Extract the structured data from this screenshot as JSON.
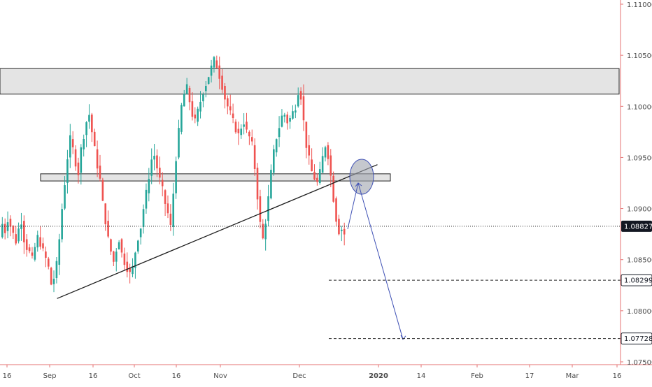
{
  "colors": {
    "up": "#26a69a",
    "down": "#ef5350",
    "axis_line": "#e57373",
    "zone_fill": "#e4e4e4",
    "zone_stroke": "#222222",
    "trendline": "#1e1e1e",
    "projection": "#3f51b5",
    "circle_fill": "#9fa3ad",
    "level_line": "#222222"
  },
  "chart_data": {
    "type": "candlestick",
    "instrument": "",
    "title": "",
    "ylim": [
      1.075,
      1.11
    ],
    "y_ticks": [
      "1.11000",
      "1.10500",
      "1.10000",
      "1.09500",
      "1.09000",
      "1.08500",
      "1.08000",
      "1.07500"
    ],
    "x_ticks": [
      "16",
      "Sep",
      "16",
      "Oct",
      "16",
      "Nov",
      "Dec",
      "2020",
      "14",
      "Feb",
      "17",
      "Mar",
      "16"
    ],
    "x_ticks_bold": [
      "2020"
    ],
    "price_levels": [
      {
        "label": "1.08827",
        "value": 1.08827,
        "style": "dotted",
        "tag": "dark"
      },
      {
        "label": "1.08299",
        "value": 1.08299,
        "style": "dashed",
        "tag": "white"
      },
      {
        "label": "1.07728",
        "value": 1.07728,
        "style": "dashed",
        "tag": "white"
      }
    ],
    "zones": [
      {
        "name": "resistance-zone",
        "from": 1.1012,
        "to": 1.1037
      },
      {
        "name": "support-zone",
        "from": 1.0927,
        "to": 1.0934
      }
    ],
    "trendline": {
      "from": [
        "2019-09-04",
        1.0812
      ],
      "to": [
        "2019-12-31",
        1.0943
      ]
    },
    "projection": [
      "1.0880",
      "1.0925",
      "1.0772"
    ],
    "open_trend": [
      1.0872,
      1.0885,
      1.0878,
      1.089,
      1.0883,
      1.0875,
      1.0868,
      1.088,
      1.0888,
      1.087,
      1.0862,
      1.0857,
      1.085,
      1.0862,
      1.0872,
      1.0866,
      1.0858,
      1.0851,
      1.0842,
      1.0826,
      1.0832,
      1.0845,
      1.087,
      1.09,
      1.0925,
      1.095,
      1.0968,
      1.0958,
      1.0945,
      1.0935,
      1.0958,
      1.0972,
      1.0985,
      1.0992,
      1.0975,
      1.0958,
      1.0942,
      1.0928,
      1.0905,
      1.0888,
      1.087,
      1.0858,
      1.0848,
      1.086,
      1.087,
      1.0856,
      1.0848,
      1.0842,
      1.0836,
      1.0842,
      1.0858,
      1.0872,
      1.0882,
      1.09,
      1.0915,
      1.0932,
      1.0948,
      1.0952,
      1.094,
      1.0928,
      1.0918,
      1.0905,
      1.0895,
      1.0882,
      1.0915,
      1.095,
      1.0975,
      1.1,
      1.1012,
      1.1018,
      1.1005,
      1.0992,
      1.0985,
      1.0995,
      1.1005,
      1.1015,
      1.1022,
      1.103,
      1.1038,
      1.1045,
      1.104,
      1.103,
      1.102,
      1.1008,
      1.1,
      1.0993,
      1.0985,
      1.0978,
      1.0972,
      1.098,
      1.0985,
      1.0975,
      1.097,
      1.0962,
      1.094,
      1.0912,
      1.0885,
      1.087,
      1.0888,
      1.091,
      1.0935,
      1.0955,
      1.097,
      1.098,
      1.099,
      1.0992,
      1.0985,
      1.0988,
      1.0994,
      1.1,
      1.1015,
      1.101,
      1.0985,
      1.0962,
      1.0948,
      1.0936,
      1.093,
      1.0925,
      1.0935,
      1.095,
      1.0962,
      1.0952,
      1.0932,
      1.091,
      1.089,
      1.0878,
      1.088
    ]
  }
}
